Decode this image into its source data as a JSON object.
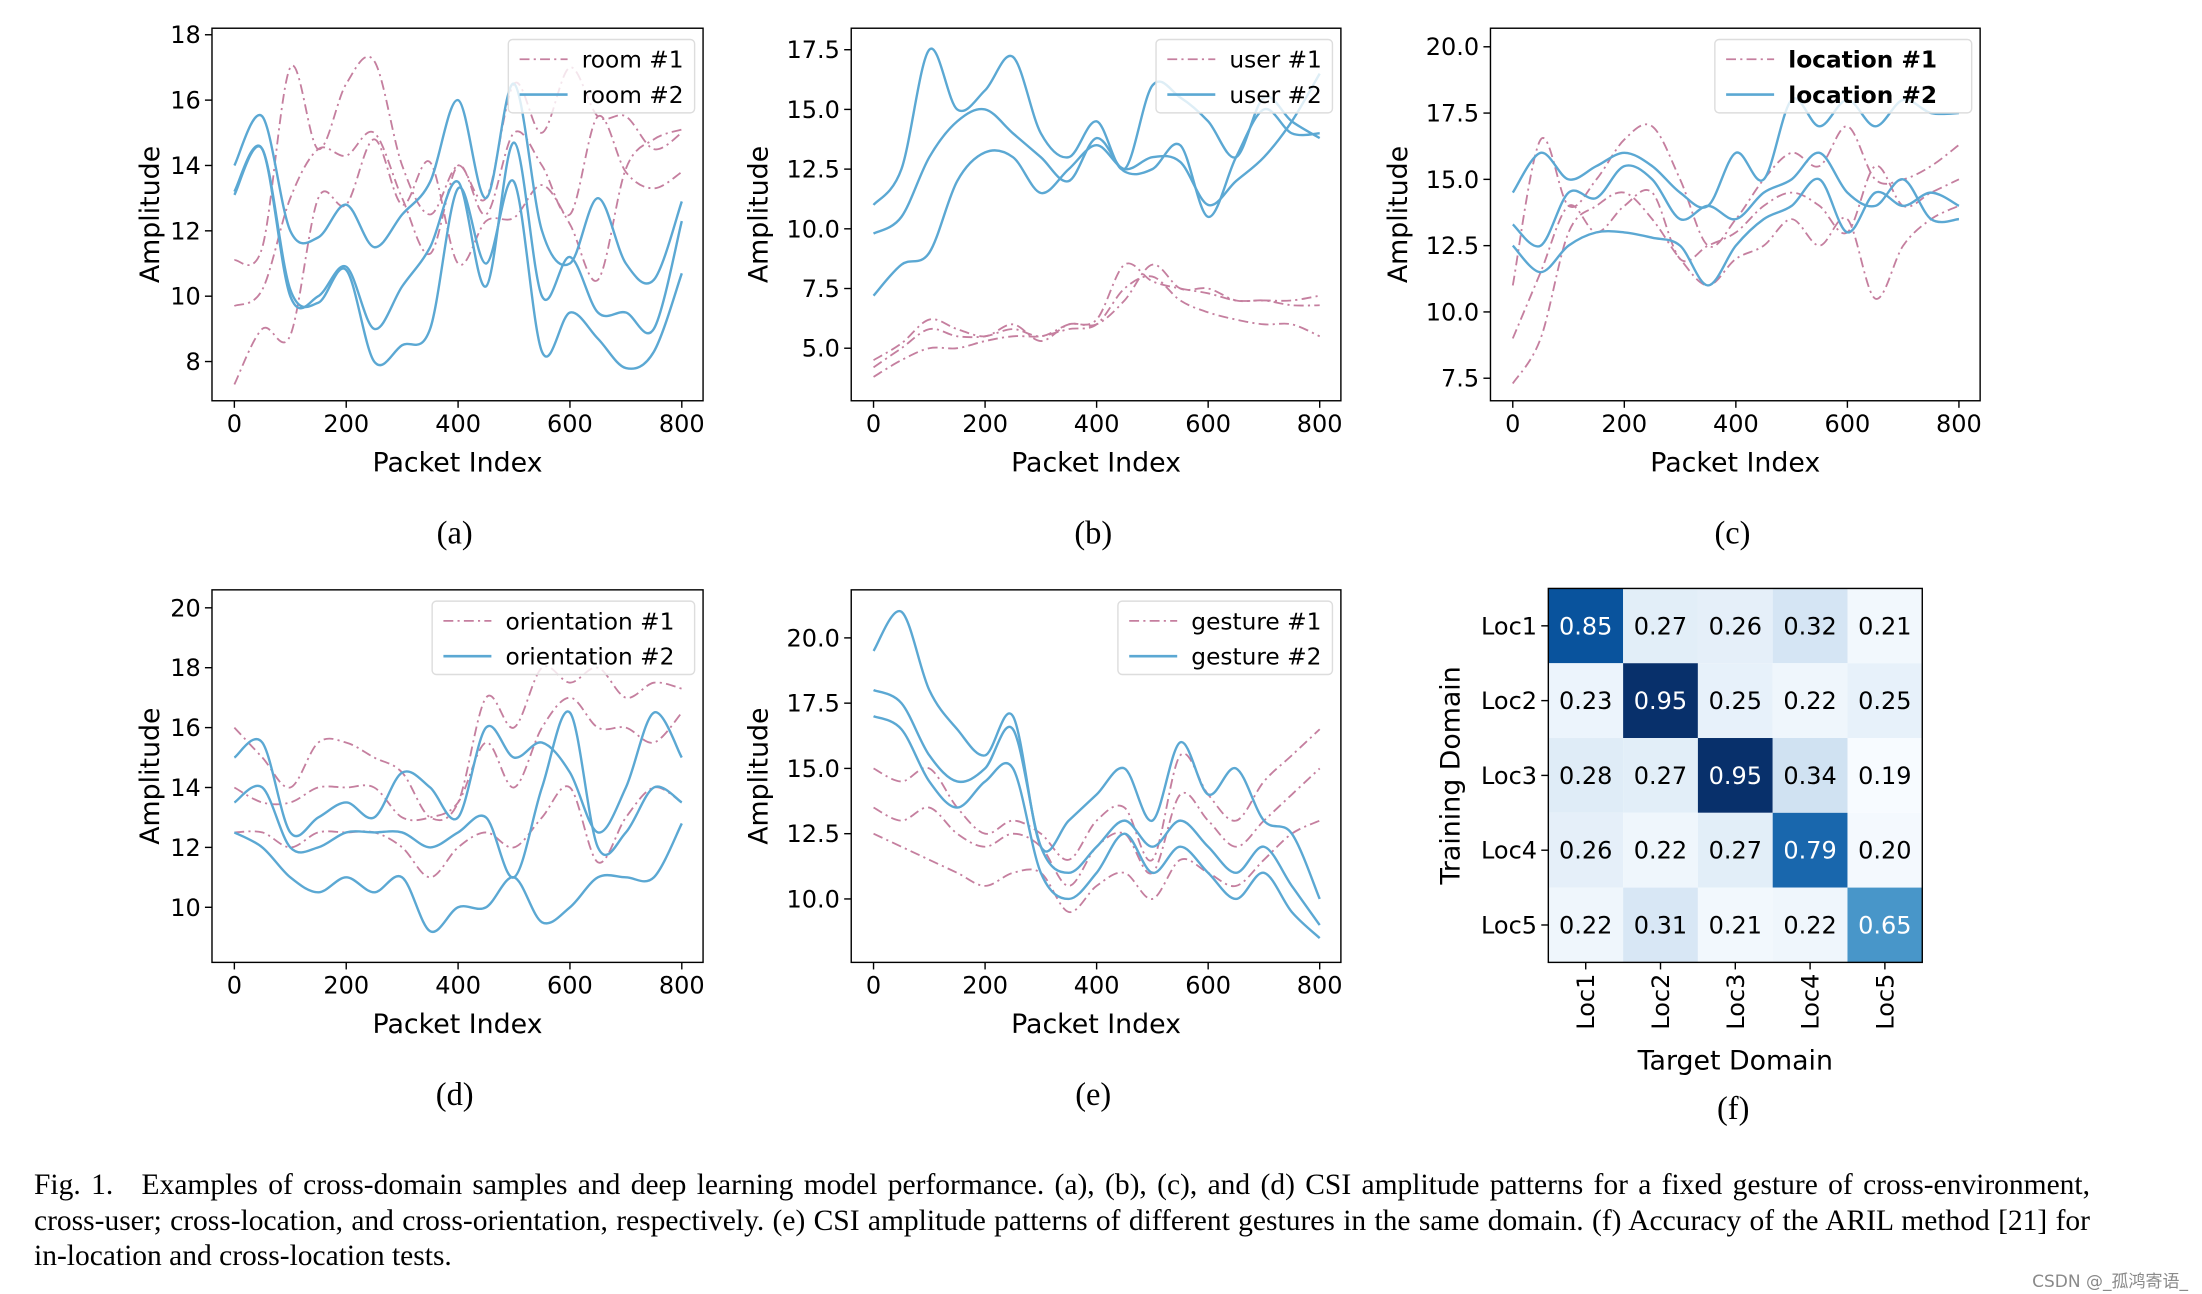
{
  "colors": {
    "series1": "#c57f9f",
    "series2": "#5ba8d3",
    "heatmap_cmap": "Blues"
  },
  "chart_data": [
    {
      "id": "a",
      "type": "line",
      "panel_label": "(a)",
      "xlabel": "Packet Index",
      "ylabel": "Amplitude",
      "xlim": [
        -40,
        838
      ],
      "ylim": [
        6.8,
        18.2
      ],
      "xticks": [
        "0",
        "200",
        "400",
        "600",
        "800"
      ],
      "yticks": [
        "8",
        "10",
        "12",
        "14",
        "16",
        "18"
      ],
      "legend_position": "top-right",
      "x": [
        0,
        50,
        100,
        150,
        200,
        250,
        300,
        350,
        400,
        450,
        500,
        550,
        600,
        650,
        700,
        750,
        800
      ],
      "series": [
        {
          "name": "room #1",
          "style": "dash-dot",
          "lines": [
            [
              11.1,
              11.5,
              17,
              14.5,
              16.5,
              17.2,
              14,
              12.5,
              14,
              13,
              16.5,
              15,
              17,
              15.5,
              15.5,
              14.5,
              15
            ],
            [
              9.7,
              10.2,
              13,
              14.5,
              14.3,
              15,
              13,
              11.3,
              14,
              12.5,
              15,
              14,
              12.5,
              15.5,
              13.8,
              13.3,
              13.8
            ],
            [
              7.3,
              9,
              8.8,
              13,
              12.8,
              14.8,
              12.8,
              14.1,
              11,
              12.3,
              12.4,
              13.4,
              12.2,
              10.5,
              13.9,
              14.8,
              15.1
            ]
          ]
        },
        {
          "name": "room #2",
          "style": "solid",
          "lines": [
            [
              14,
              15.5,
              12,
              11.8,
              12.8,
              11.5,
              12.5,
              13.5,
              16,
              13,
              16.5,
              12,
              11,
              13,
              11,
              10.5,
              12.9
            ],
            [
              13.2,
              14.5,
              10,
              10,
              10.9,
              9,
              10.3,
              11.5,
              13.5,
              10.3,
              14.7,
              10,
              11.2,
              9.5,
              9.5,
              9,
              12.3
            ],
            [
              13.1,
              14.5,
              10.2,
              9.8,
              10.8,
              8,
              8.5,
              9,
              13.3,
              11,
              13.5,
              8.3,
              9.5,
              8.7,
              7.8,
              8.3,
              10.7
            ]
          ]
        }
      ]
    },
    {
      "id": "b",
      "type": "line",
      "panel_label": "(b)",
      "xlabel": "Packet Index",
      "ylabel": "Amplitude",
      "xlim": [
        -40,
        838
      ],
      "ylim": [
        2.8,
        18.4
      ],
      "xticks": [
        "0",
        "200",
        "400",
        "600",
        "800"
      ],
      "yticks": [
        "5.0",
        "7.5",
        "10.0",
        "12.5",
        "15.0",
        "17.5"
      ],
      "legend_position": "top-right",
      "x": [
        0,
        50,
        100,
        150,
        200,
        250,
        300,
        350,
        400,
        450,
        500,
        550,
        600,
        650,
        700,
        750,
        800
      ],
      "series": [
        {
          "name": "user #1",
          "style": "dash-dot",
          "lines": [
            [
              4.2,
              5,
              5.8,
              5.5,
              5.5,
              5.8,
              5.5,
              6,
              6.2,
              8.5,
              7.8,
              7.5,
              7.3,
              7,
              7,
              7,
              7.2
            ],
            [
              4.5,
              5.2,
              6.2,
              5.8,
              5.5,
              6,
              5.3,
              6,
              6,
              7,
              8.5,
              7.5,
              7.5,
              7,
              7,
              6.8,
              6.8
            ],
            [
              3.8,
              4.5,
              5,
              5,
              5.3,
              5.5,
              5.5,
              5.8,
              6,
              7.5,
              8,
              7,
              6.5,
              6.2,
              6,
              6,
              5.5
            ]
          ]
        },
        {
          "name": "user #2",
          "style": "solid",
          "lines": [
            [
              11,
              12.5,
              17.5,
              15,
              15.8,
              17.2,
              14,
              13,
              14.5,
              12.5,
              16,
              15.5,
              14.5,
              13,
              15.5,
              14.5,
              13.8
            ],
            [
              9.8,
              10.5,
              13,
              14.5,
              15,
              14,
              13,
              12,
              13.8,
              12.4,
              12.5,
              13.5,
              10.5,
              13,
              15,
              14,
              14
            ],
            [
              7.2,
              8.5,
              9,
              12,
              13.2,
              13,
              11.5,
              12.5,
              13.5,
              12.5,
              13,
              12.8,
              11,
              12,
              13,
              14.5,
              16.5
            ]
          ]
        }
      ]
    },
    {
      "id": "c",
      "type": "line",
      "panel_label": "(c)",
      "xlabel": "Packet Index",
      "ylabel": "Amplitude",
      "xlim": [
        -40,
        838
      ],
      "ylim": [
        6.65,
        20.7
      ],
      "xticks": [
        "0",
        "200",
        "400",
        "600",
        "800"
      ],
      "yticks": [
        "7.5",
        "10.0",
        "12.5",
        "15.0",
        "17.5",
        "20.0"
      ],
      "legend_position": "top-right",
      "x": [
        0,
        50,
        100,
        150,
        200,
        250,
        300,
        350,
        400,
        450,
        500,
        550,
        600,
        650,
        700,
        750,
        800
      ],
      "series": [
        {
          "name": "location #1",
          "style": "dash-dot",
          "lines": [
            [
              11,
              16.5,
              14,
              15,
              16.5,
              17,
              15,
              12.5,
              13.5,
              15,
              16,
              15.5,
              17,
              15,
              15,
              15.5,
              16.3
            ],
            [
              9,
              11.5,
              14,
              13,
              14,
              14.5,
              12,
              12.5,
              13,
              14,
              14.5,
              14,
              13,
              15.5,
              14,
              14.5,
              15
            ],
            [
              7.3,
              9,
              13,
              14,
              14.5,
              13.5,
              12,
              11,
              12,
              12.5,
              13.5,
              12.5,
              13.5,
              10.5,
              12.5,
              13.5,
              14
            ]
          ]
        },
        {
          "name": "location #2",
          "style": "solid",
          "lines": [
            [
              14.5,
              16,
              15,
              15.5,
              16,
              15.5,
              14.5,
              14,
              16,
              15,
              18,
              17,
              18,
              17,
              18,
              17.5,
              17.5
            ],
            [
              13.3,
              12.5,
              14.5,
              14.3,
              15.5,
              15,
              13.5,
              14,
              13.5,
              14.5,
              15,
              16,
              14.5,
              14,
              15,
              13.5,
              13.5
            ],
            [
              12.5,
              11.5,
              12.5,
              13,
              13,
              12.8,
              12.5,
              11,
              12.5,
              13.5,
              14,
              15,
              13,
              14.5,
              14,
              14.5,
              14
            ]
          ]
        }
      ]
    },
    {
      "id": "d",
      "type": "line",
      "panel_label": "(d)",
      "xlabel": "Packet Index",
      "ylabel": "Amplitude",
      "xlim": [
        -40,
        838
      ],
      "ylim": [
        8.16,
        20.6
      ],
      "xticks": [
        "0",
        "200",
        "400",
        "600",
        "800"
      ],
      "yticks": [
        "10",
        "12",
        "14",
        "16",
        "18",
        "20"
      ],
      "legend_position": "top-right",
      "x": [
        0,
        50,
        100,
        150,
        200,
        250,
        300,
        350,
        400,
        450,
        500,
        550,
        600,
        650,
        700,
        750,
        800
      ],
      "series": [
        {
          "name": "orientation #1",
          "style": "dash-dot",
          "lines": [
            [
              16,
              15,
              14,
              15.5,
              15.5,
              15,
              14.5,
              13,
              13.5,
              17,
              16,
              18,
              17.5,
              18,
              17,
              17.5,
              17.3
            ],
            [
              14,
              13.5,
              13.5,
              14,
              14,
              14,
              13,
              13,
              13.5,
              15.5,
              14,
              16,
              17,
              16,
              16,
              15.5,
              16.5
            ],
            [
              12.5,
              12.5,
              12,
              12.5,
              12.5,
              12.5,
              12,
              11,
              12,
              12.5,
              12,
              13,
              14,
              11.5,
              13,
              14,
              13.5
            ]
          ]
        },
        {
          "name": "orientation #2",
          "style": "solid",
          "lines": [
            [
              15,
              15.5,
              12.5,
              13,
              13.5,
              13,
              14.5,
              14,
              13,
              16,
              15,
              15.5,
              14.5,
              12.5,
              14,
              16.5,
              15
            ],
            [
              13.5,
              14,
              12,
              12,
              12.5,
              12.5,
              12.5,
              12,
              12.5,
              13,
              11,
              14,
              16.5,
              12,
              12.5,
              14,
              13.5
            ],
            [
              12.5,
              12,
              11,
              10.5,
              11,
              10.5,
              11,
              9.2,
              10,
              10,
              11,
              9.5,
              10,
              11,
              11,
              11,
              12.8
            ]
          ]
        }
      ]
    },
    {
      "id": "e",
      "type": "line",
      "panel_label": "(e)",
      "xlabel": "Packet Index",
      "ylabel": "Amplitude",
      "xlim": [
        -40,
        838
      ],
      "ylim": [
        7.57,
        21.84
      ],
      "xticks": [
        "0",
        "200",
        "400",
        "600",
        "800"
      ],
      "yticks": [
        "10.0",
        "12.5",
        "15.0",
        "17.5",
        "20.0"
      ],
      "legend_position": "top-right",
      "x": [
        0,
        50,
        100,
        150,
        200,
        250,
        300,
        350,
        400,
        450,
        500,
        550,
        600,
        650,
        700,
        750,
        800
      ],
      "series": [
        {
          "name": "gesture #1",
          "style": "dash-dot",
          "lines": [
            [
              15,
              14.5,
              15,
              13.5,
              12.5,
              13,
              12.5,
              11.5,
              13,
              13.5,
              11.5,
              15.5,
              14,
              13,
              14.5,
              15.5,
              16.5
            ],
            [
              13.5,
              13,
              13.5,
              12.5,
              12,
              12.5,
              12,
              10.5,
              12,
              12.5,
              11,
              14,
              13,
              12,
              13,
              14,
              15
            ],
            [
              12.5,
              12,
              11.5,
              11,
              10.5,
              11,
              11,
              9.5,
              10.5,
              11,
              10,
              11.5,
              11,
              10.5,
              11.5,
              12.5,
              13
            ]
          ]
        },
        {
          "name": "gesture #2",
          "style": "solid",
          "lines": [
            [
              19.5,
              21,
              18,
              16.5,
              15.5,
              17,
              12,
              13,
              14,
              15,
              13,
              16,
              14,
              15,
              13,
              12.5,
              10
            ],
            [
              18,
              17.5,
              15.5,
              14.5,
              15,
              16.5,
              12,
              11,
              12,
              13,
              12,
              13,
              12,
              11,
              12,
              10.5,
              9
            ],
            [
              17,
              16.5,
              14.5,
              13.5,
              14.5,
              15,
              11,
              10,
              11,
              12.5,
              11,
              12,
              11,
              10,
              11,
              9.5,
              8.5
            ]
          ]
        }
      ]
    },
    {
      "id": "f",
      "type": "heatmap",
      "panel_label": "(f)",
      "xlabel": "Target Domain",
      "ylabel": "Training Domain",
      "row_labels": [
        "Loc1",
        "Loc2",
        "Loc3",
        "Loc4",
        "Loc5"
      ],
      "col_labels": [
        "Loc1",
        "Loc2",
        "Loc3",
        "Loc4",
        "Loc5"
      ],
      "values": [
        [
          "0.85",
          "0.27",
          "0.26",
          "0.32",
          "0.21"
        ],
        [
          "0.23",
          "0.95",
          "0.25",
          "0.22",
          "0.25"
        ],
        [
          "0.28",
          "0.27",
          "0.95",
          "0.34",
          "0.19"
        ],
        [
          "0.26",
          "0.22",
          "0.27",
          "0.79",
          "0.20"
        ],
        [
          "0.22",
          "0.31",
          "0.21",
          "0.22",
          "0.65"
        ]
      ]
    }
  ],
  "caption": {
    "fig_label": "Fig. 1.",
    "text": "Examples of cross-domain samples and deep learning model performance. (a), (b), (c), and (d) CSI amplitude patterns for a fixed gesture of cross-environment, cross-user; cross-location, and cross-orientation, respectively. (e) CSI amplitude patterns of different gestures in the same domain. (f) Accuracy of the ARIL method [21] for in-location and cross-location tests."
  },
  "watermark": "CSDN @_孤鸿寄语_"
}
